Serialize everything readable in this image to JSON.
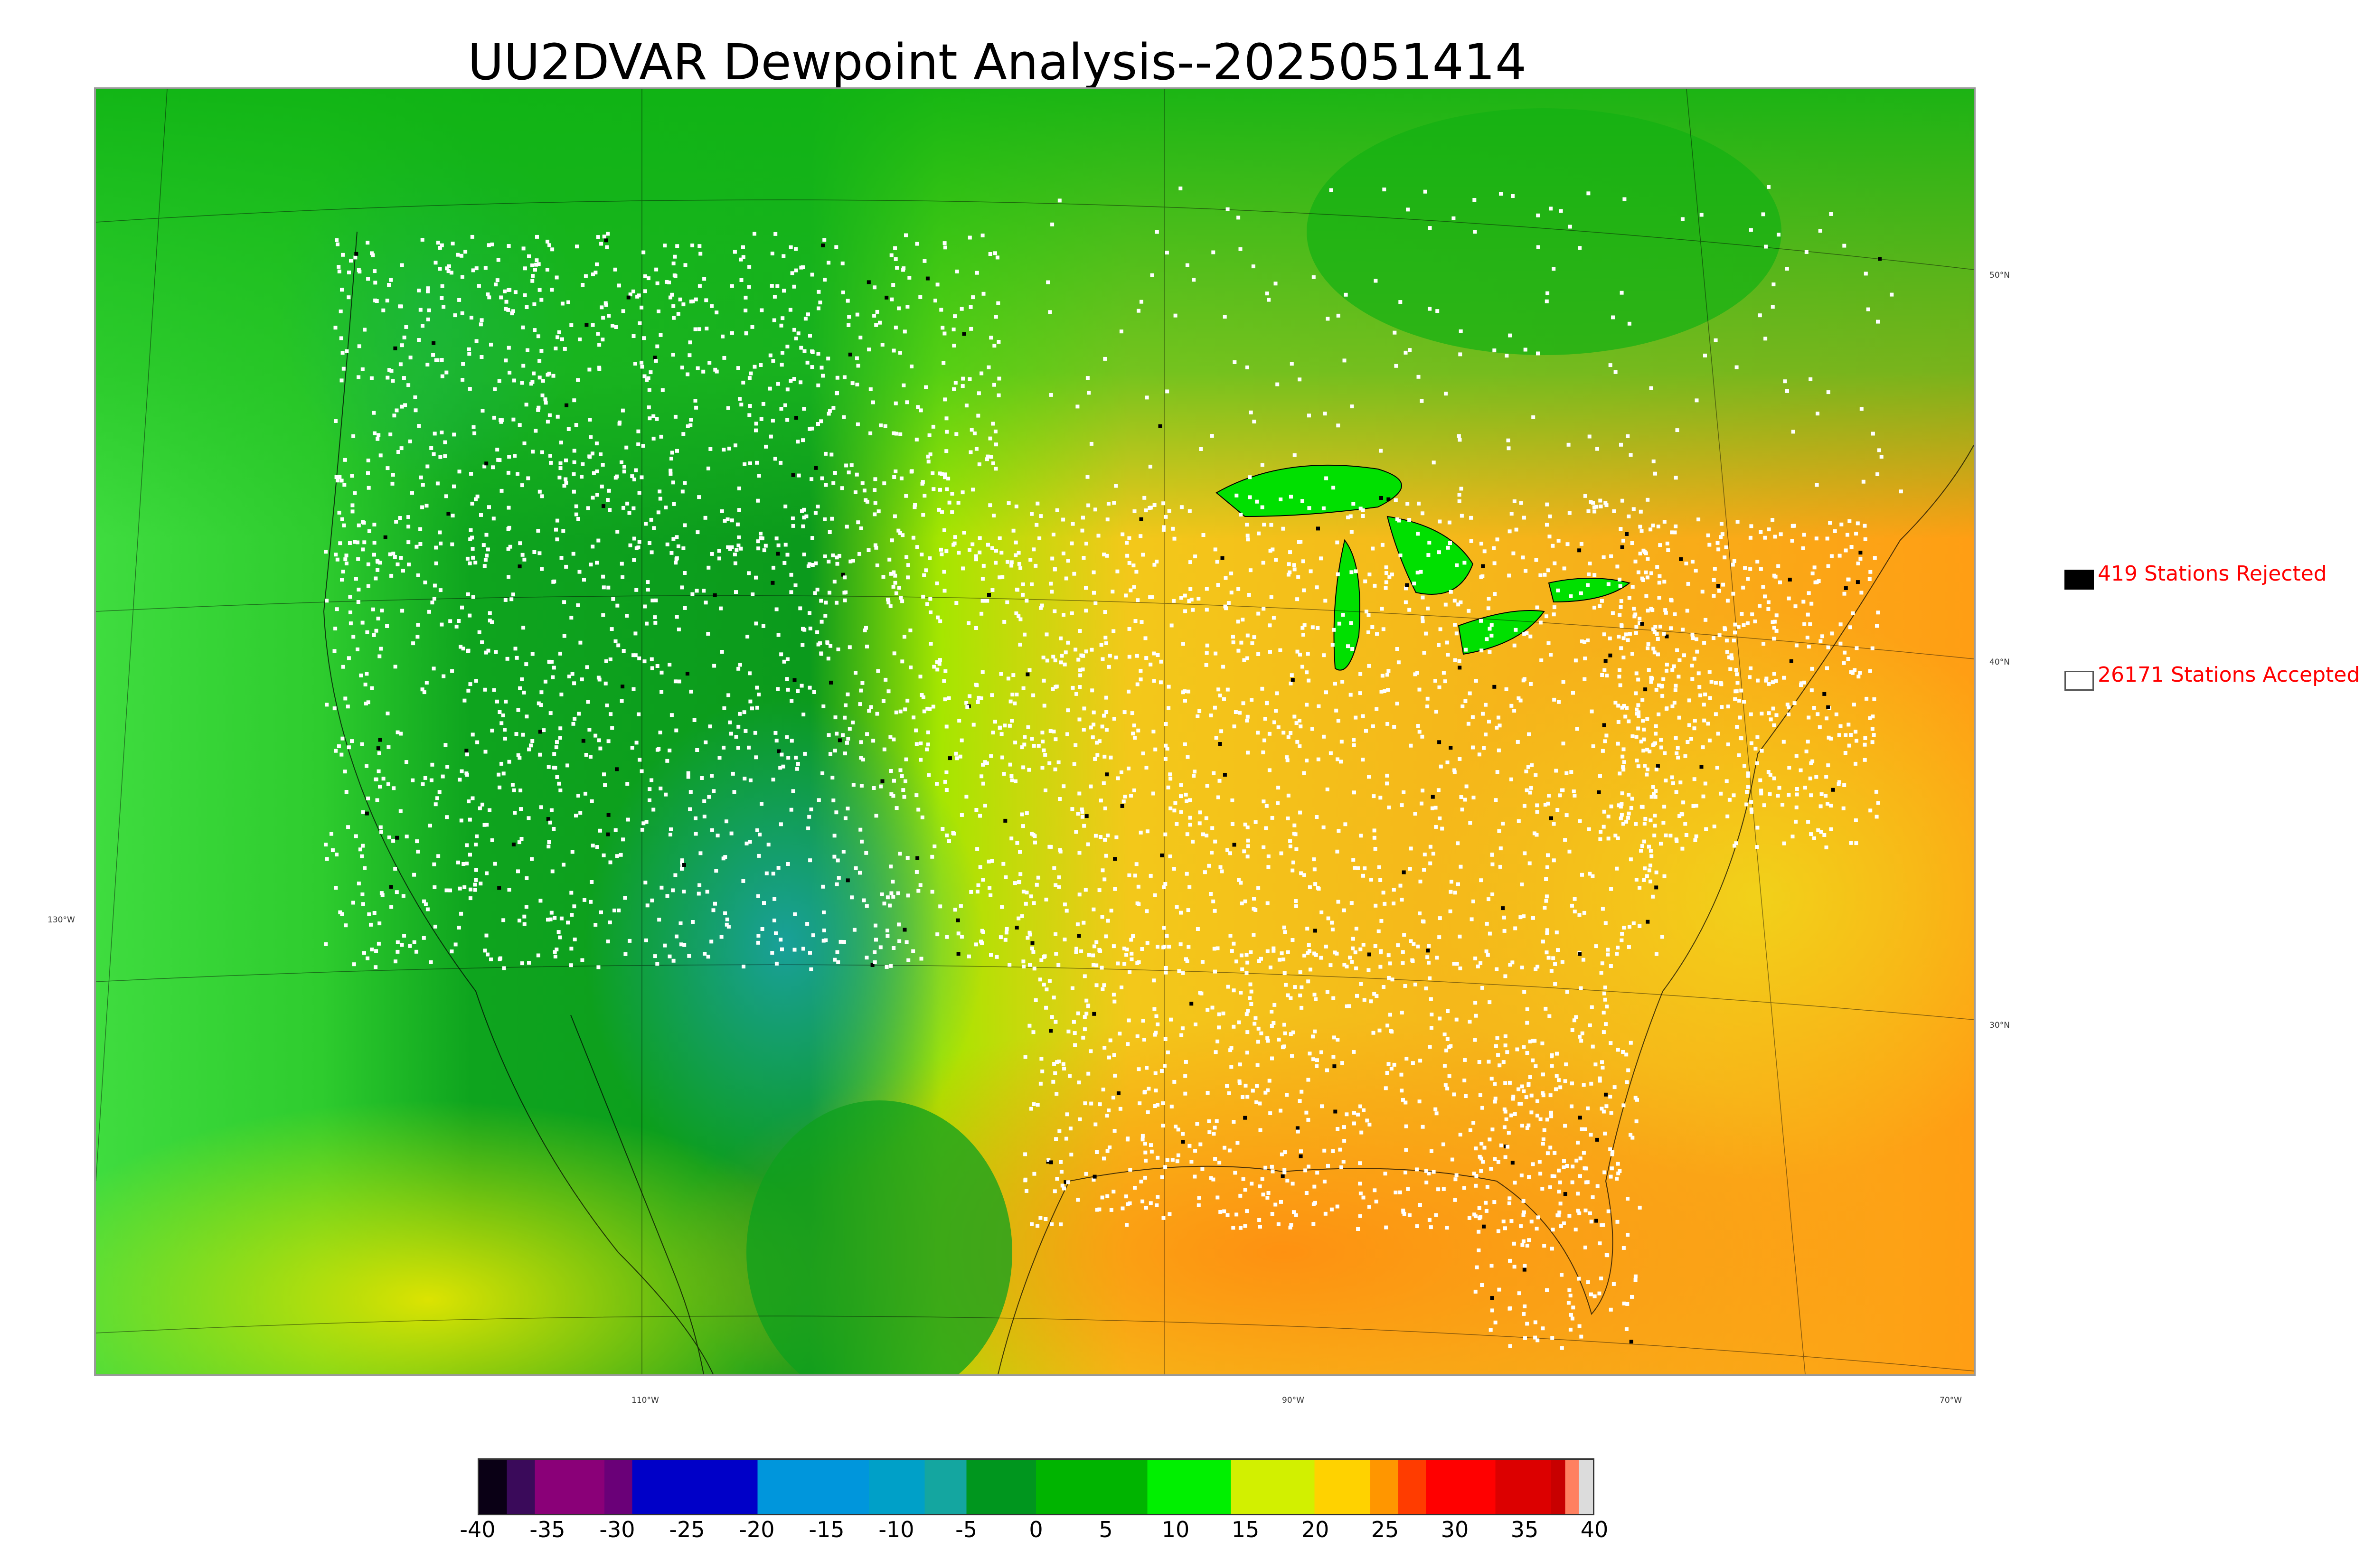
{
  "title": "UU2DVAR Dewpoint Analysis--2025051414",
  "legend": {
    "rejected_label": "419 Stations Rejected",
    "accepted_label": "26171 Stations Accepted",
    "rejected_color": "#000000",
    "accepted_color": "#ffffff",
    "label_color": "#ff0000"
  },
  "map_ticks": {
    "lat": [
      "50°N",
      "40°N",
      "30°N"
    ],
    "lon": [
      "130°W",
      "110°W",
      "90°W",
      "70°W"
    ]
  },
  "colorbar": {
    "min": -40,
    "max": 40,
    "ticks": [
      "-40",
      "-35",
      "-30",
      "-25",
      "-20",
      "-15",
      "-10",
      "-5",
      "0",
      "5",
      "10",
      "15",
      "20",
      "25",
      "30",
      "35",
      "40"
    ],
    "stops": [
      {
        "value": -40,
        "color": "#0a0015"
      },
      {
        "value": -38,
        "color": "#3a0a5a"
      },
      {
        "value": -36,
        "color": "#8a0078"
      },
      {
        "value": -31,
        "color": "#6a0078"
      },
      {
        "value": -29,
        "color": "#0000c8"
      },
      {
        "value": -21,
        "color": "#0000c8"
      },
      {
        "value": -20,
        "color": "#0096dc"
      },
      {
        "value": -12,
        "color": "#00a0c8"
      },
      {
        "value": -8,
        "color": "#14a6a0"
      },
      {
        "value": -5,
        "color": "#00961e"
      },
      {
        "value": 0,
        "color": "#00b400"
      },
      {
        "value": 8,
        "color": "#00f000"
      },
      {
        "value": 14,
        "color": "#d2f000"
      },
      {
        "value": 20,
        "color": "#ffd200"
      },
      {
        "value": 24,
        "color": "#ff9600"
      },
      {
        "value": 26,
        "color": "#ff3c00"
      },
      {
        "value": 28,
        "color": "#ff0000"
      },
      {
        "value": 33,
        "color": "#dc0000"
      },
      {
        "value": 37,
        "color": "#c80000"
      },
      {
        "value": 38,
        "color": "#ff8060"
      },
      {
        "value": 39,
        "color": "#dcdcdc"
      }
    ]
  },
  "colors": {
    "ocean_west": "#2ecc2e",
    "land_west": "#0a9a1c",
    "land_east": "#f7b81a",
    "gulf": "#ff9e14",
    "canada": "#18b818",
    "rockies": "#1aa0a0",
    "station_accepted": "#ffffff",
    "station_rejected": "#000000"
  }
}
